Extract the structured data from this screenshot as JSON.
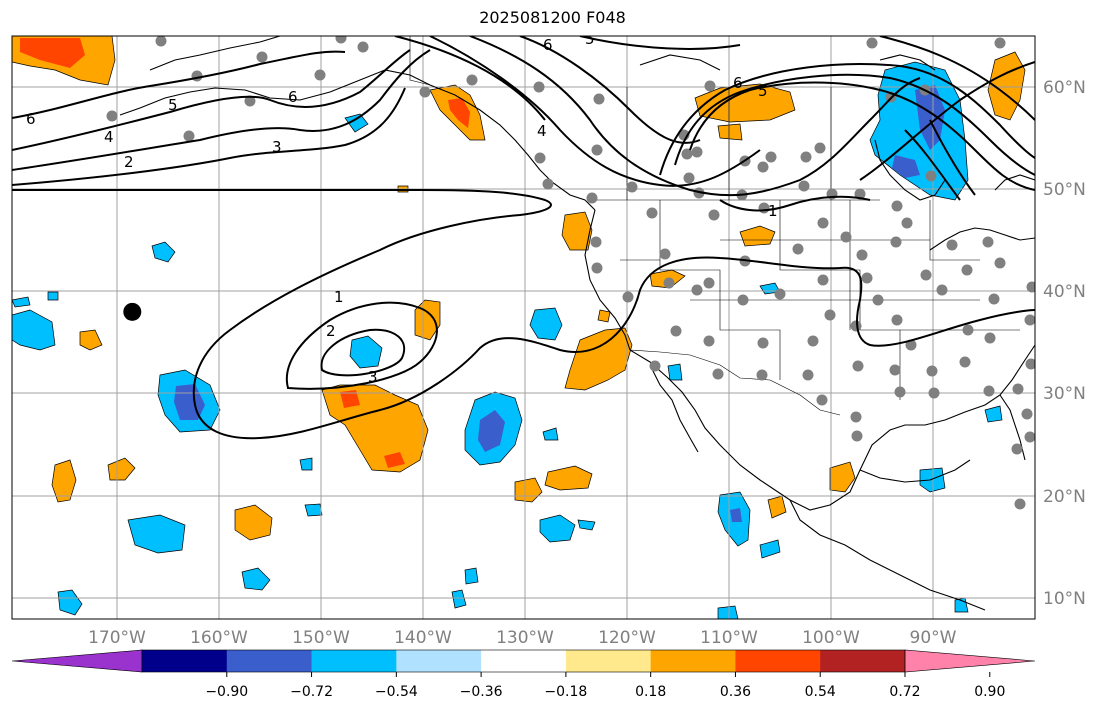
{
  "title": "2025081200 F048",
  "lon_labels": [
    "170°W",
    "160°W",
    "150°W",
    "140°W",
    "130°W",
    "120°W",
    "110°W",
    "100°W",
    "90°W"
  ],
  "lat_labels": [
    "60°N",
    "50°N",
    "40°N",
    "30°N",
    "20°N",
    "10°N"
  ],
  "contour_labels": [
    "6",
    "5",
    "4",
    "3",
    "2",
    "6",
    "5",
    "4",
    "6",
    "5",
    "1",
    "1",
    "2",
    "3",
    "6"
  ],
  "colorbar": {
    "ticks": [
      "−0.90",
      "−0.72",
      "−0.54",
      "−0.36",
      "−0.18",
      "0.18",
      "0.36",
      "0.54",
      "0.72",
      "0.90"
    ],
    "colors": [
      "#9a32cd",
      "#00008b",
      "#3a5fcd",
      "#00bfff",
      "#b0e2ff",
      "#ffffff",
      "#ffe98c",
      "#ffa500",
      "#ff4500",
      "#b22222",
      "#ff82ab"
    ]
  },
  "marker_large": {
    "lon": -168.5,
    "lat": 38
  }
}
